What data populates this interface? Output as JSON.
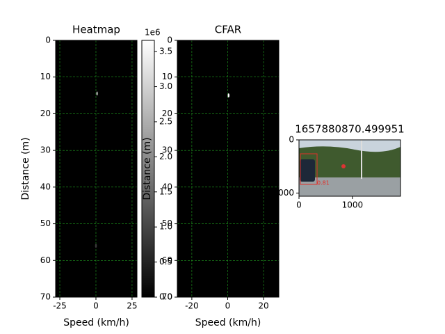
{
  "chart_data": [
    {
      "type": "heatmap",
      "title": "Heatmap",
      "xlabel": "Speed (km/h)",
      "ylabel": "Distance (m)",
      "xlim": [
        -27.9,
        28.4
      ],
      "ylim": [
        70,
        0
      ],
      "xticks": [
        -25,
        0,
        25
      ],
      "yticks": [
        0,
        10,
        20,
        30,
        40,
        50,
        60,
        70
      ],
      "grid": true,
      "grid_color": "#1f9e1f",
      "background": "#000000",
      "spots": {
        "x": [
          0.8,
          0
        ],
        "y": [
          14.5,
          56
        ],
        "color": [
          "#9a9a9a",
          "#3a3a3a"
        ]
      }
    },
    {
      "type": "colorbar",
      "offset_label": "1e6",
      "ylim": [
        0,
        3660000
      ],
      "yticks": [
        {
          "value": 0,
          "label": "0.0"
        },
        {
          "value": 500000,
          "label": "0.5"
        },
        {
          "value": 1000000,
          "label": "1.0"
        },
        {
          "value": 1500000,
          "label": "1.5"
        },
        {
          "value": 2000000,
          "label": "2.0"
        },
        {
          "value": 2500000,
          "label": "2.5"
        },
        {
          "value": 3000000,
          "label": "3.0"
        },
        {
          "value": 3500000,
          "label": "3.5"
        }
      ],
      "colors": [
        "#000000",
        "#ffffff"
      ]
    },
    {
      "type": "heatmap",
      "title": "CFAR",
      "xlabel": "Speed (km/h)",
      "ylabel": "Distance (m)",
      "xlim": [
        -28.1,
        28.5
      ],
      "ylim": [
        70,
        0
      ],
      "xticks": [
        -20,
        0,
        20
      ],
      "yticks": [
        0,
        10,
        20,
        30,
        40,
        50,
        60,
        70
      ],
      "grid": true,
      "grid_color": "#1f9e1f",
      "background": "#000000",
      "spots": {
        "x": [
          0.5
        ],
        "y": [
          15
        ],
        "color": [
          "#ffffff"
        ]
      }
    },
    {
      "type": "image",
      "title": "1657880870.499951",
      "xlim": [
        0,
        1900
      ],
      "ylim": [
        1060,
        0
      ],
      "xticks": [
        0,
        1000
      ],
      "yticks": [
        0,
        1000
      ],
      "annotation": "0.81"
    }
  ]
}
